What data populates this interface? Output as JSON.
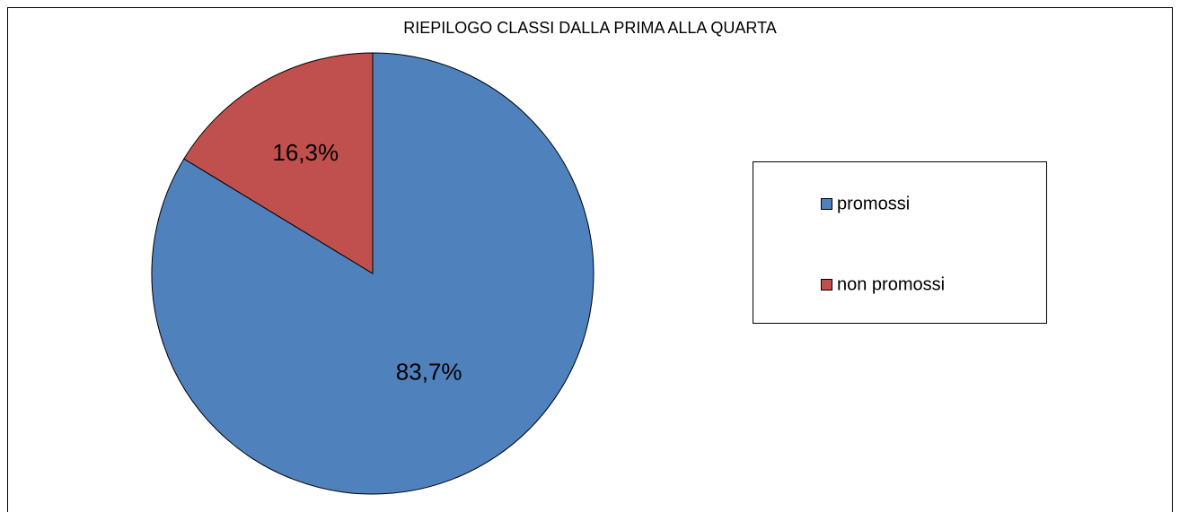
{
  "chart_data": {
    "type": "pie",
    "title": "RIEPILOGO CLASSI DALLA PRIMA ALLA QUARTA",
    "categories": [
      "promossi",
      "non promossi"
    ],
    "values": [
      83.7,
      16.3
    ],
    "value_labels": [
      "83,7%",
      "16,3%"
    ],
    "colors": [
      "#4f81bd",
      "#c0504d"
    ],
    "legend": "right"
  }
}
